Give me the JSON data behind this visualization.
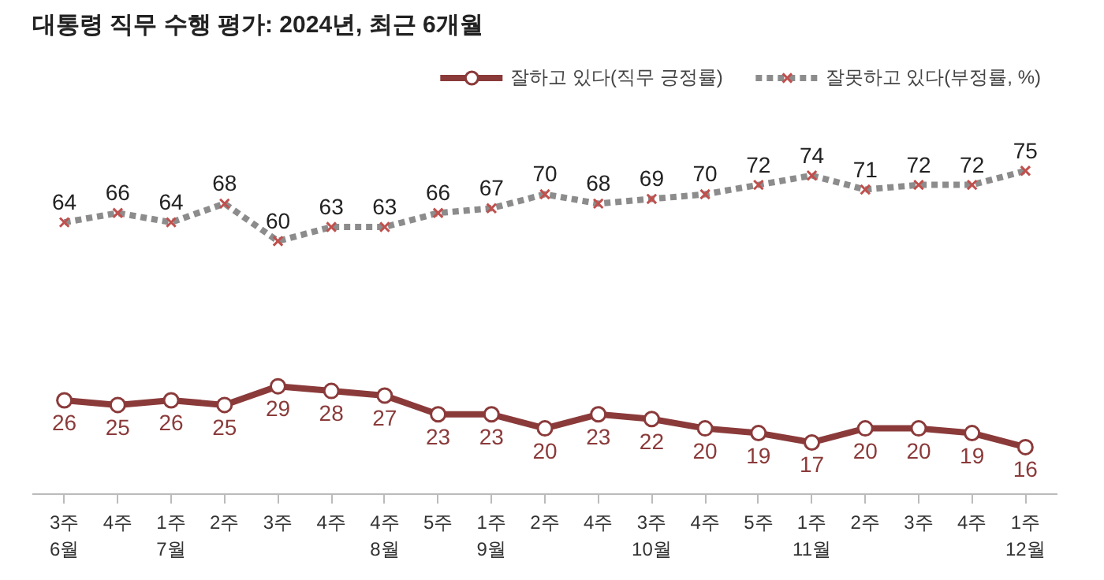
{
  "chart_data": {
    "type": "line",
    "title": "대통령 직무 수행 평가: 2024년, 최근 6개월",
    "categories": [
      "3주\n6월",
      "4주",
      "1주\n7월",
      "2주",
      "3주",
      "4주",
      "4주\n8월",
      "5주",
      "1주\n9월",
      "2주",
      "4주",
      "3주\n10월",
      "4주",
      "5주",
      "1주\n11월",
      "2주",
      "3주",
      "4주",
      "1주\n12월"
    ],
    "series": [
      {
        "name": "잘하고 있다(직무 긍정률)",
        "color": "#8b3a3a",
        "marker": "circle",
        "line_style": "solid",
        "values": [
          26,
          25,
          26,
          25,
          29,
          28,
          27,
          23,
          23,
          20,
          23,
          22,
          20,
          19,
          17,
          20,
          20,
          19,
          16
        ]
      },
      {
        "name": "잘못하고 있다(부정률, %)",
        "color": "#8c8c8c",
        "marker": "cross",
        "line_style": "dashed",
        "values": [
          64,
          66,
          64,
          68,
          60,
          63,
          63,
          66,
          67,
          70,
          68,
          69,
          70,
          72,
          74,
          71,
          72,
          72,
          75
        ]
      }
    ],
    "data_labels": true,
    "grid": false,
    "legend": "top right"
  }
}
